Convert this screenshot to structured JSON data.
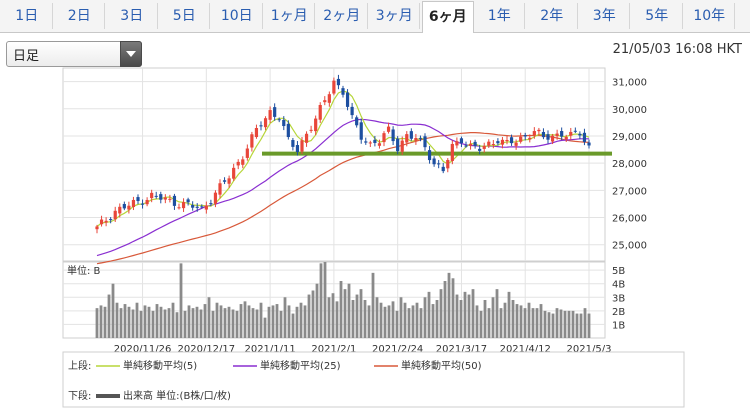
{
  "tabs": [
    "1日",
    "2日",
    "3日",
    "5日",
    "10日",
    "1ヶ月",
    "2ヶ月",
    "3ヶ月",
    "6ヶ月",
    "1年",
    "2年",
    "3年",
    "5年",
    "10年"
  ],
  "active_tab": "6ヶ月",
  "period_select": {
    "value": "日足"
  },
  "timestamp": "21/05/03 16:08 HKT",
  "legend": {
    "upper_label": "上段:",
    "lower_label": "下段:",
    "ma5": "単純移動平均(5)",
    "ma25": "単純移動平均(25)",
    "ma50": "単純移動平均(50)",
    "volume": "出来高 単位:(B株/口/枚)"
  },
  "colors": {
    "up": "#e8463a",
    "down": "#1d4fa0",
    "ma5": "#b7d63a",
    "ma25": "#8a2fd1",
    "ma50": "#d8593a",
    "support": "#6a9a2a",
    "volume": "#8a8a8a"
  },
  "chart_data": [
    {
      "type": "candlestick",
      "title": "",
      "ylim": [
        24400,
        31500
      ],
      "yticks": [
        "31,000",
        "30,000",
        "29,000",
        "28,000",
        "27,000",
        "26,000",
        "25,000"
      ],
      "ytick_values": [
        31000,
        30000,
        29000,
        28000,
        27000,
        26000,
        25000
      ],
      "x_labels": [
        "2020/11/26",
        "2020/12/17",
        "2021/1/11",
        "2021/2/1",
        "2021/2/24",
        "2021/3/17",
        "2021/4/12",
        "2021/5/3"
      ],
      "x_label_index": [
        10,
        24,
        38,
        52,
        66,
        80,
        94,
        108
      ],
      "support_level": 28350,
      "anchors_close": [
        [
          0,
          25600
        ],
        [
          4,
          26250
        ],
        [
          8,
          26500
        ],
        [
          12,
          26800
        ],
        [
          16,
          26600
        ],
        [
          20,
          26450
        ],
        [
          23,
          26300
        ],
        [
          26,
          26900
        ],
        [
          29,
          27500
        ],
        [
          32,
          28300
        ],
        [
          35,
          29200
        ],
        [
          38,
          29900
        ],
        [
          40,
          29700
        ],
        [
          42,
          28800
        ],
        [
          44,
          28500
        ],
        [
          46,
          29100
        ],
        [
          48,
          29600
        ],
        [
          50,
          30300
        ],
        [
          52,
          31050
        ],
        [
          54,
          30600
        ],
        [
          56,
          29600
        ],
        [
          58,
          29000
        ],
        [
          60,
          28700
        ],
        [
          62,
          28800
        ],
        [
          64,
          29200
        ],
        [
          66,
          28600
        ],
        [
          68,
          29000
        ],
        [
          70,
          28900
        ],
        [
          72,
          28600
        ],
        [
          74,
          28000
        ],
        [
          76,
          27700
        ],
        [
          78,
          28600
        ],
        [
          80,
          28900
        ],
        [
          82,
          28600
        ],
        [
          84,
          28500
        ],
        [
          86,
          28700
        ],
        [
          88,
          28900
        ],
        [
          90,
          28700
        ],
        [
          92,
          28800
        ],
        [
          94,
          29000
        ],
        [
          96,
          29200
        ],
        [
          98,
          28900
        ],
        [
          100,
          29000
        ],
        [
          102,
          29100
        ],
        [
          104,
          29000
        ],
        [
          106,
          29100
        ],
        [
          108,
          28600
        ]
      ],
      "ma_start": {
        "ma25": [
          25000,
          24800
        ],
        "ma50": [
          24700,
          24500
        ]
      }
    },
    {
      "type": "bar",
      "title": "",
      "unit_label": "単位: B",
      "ylim": [
        0,
        5.6
      ],
      "yticks": [
        "5B",
        "4B",
        "3B",
        "2B",
        "1B"
      ],
      "ytick_values": [
        5,
        4,
        3,
        2,
        1
      ],
      "values": [
        2.2,
        2.4,
        2.3,
        3.2,
        4.0,
        2.6,
        2.2,
        2.5,
        2.3,
        2.1,
        2.6,
        2.0,
        2.4,
        2.3,
        2.0,
        2.5,
        2.3,
        2.1,
        2.2,
        2.6,
        1.9,
        5.5,
        2.0,
        2.4,
        2.2,
        2.3,
        2.1,
        2.5,
        3.0,
        2.0,
        2.6,
        2.4,
        2.2,
        2.3,
        2.1,
        2.0,
        2.5,
        2.7,
        2.4,
        2.2,
        2.1,
        2.6,
        1.5,
        2.3,
        2.4,
        2.5,
        2.0,
        3.0,
        2.4,
        1.8,
        2.3,
        2.6,
        2.4,
        3.2,
        3.5,
        4.0,
        5.5,
        5.6,
        3.0,
        3.3,
        2.7,
        4.2,
        3.6,
        4.0,
        2.8,
        3.2,
        3.6,
        2.8,
        2.4,
        4.8,
        3.0,
        2.6,
        2.3,
        2.4,
        2.7,
        2.0,
        3.0,
        2.6,
        2.2,
        2.4,
        2.6,
        2.2,
        3.0,
        3.4,
        2.5,
        2.8,
        3.6,
        4.2,
        4.8,
        4.4,
        3.2,
        2.8,
        3.4,
        3.2,
        3.6,
        2.4,
        2.0,
        2.8,
        2.2,
        3.0,
        3.6,
        2.2,
        2.6,
        3.4,
        2.8,
        2.5,
        2.4,
        2.2,
        2.6,
        2.2,
        2.2,
        2.5,
        2.0,
        1.9,
        1.8,
        2.2,
        2.1,
        2.0,
        2.0,
        2.0,
        1.8,
        1.8,
        2.2,
        1.8
      ]
    }
  ]
}
